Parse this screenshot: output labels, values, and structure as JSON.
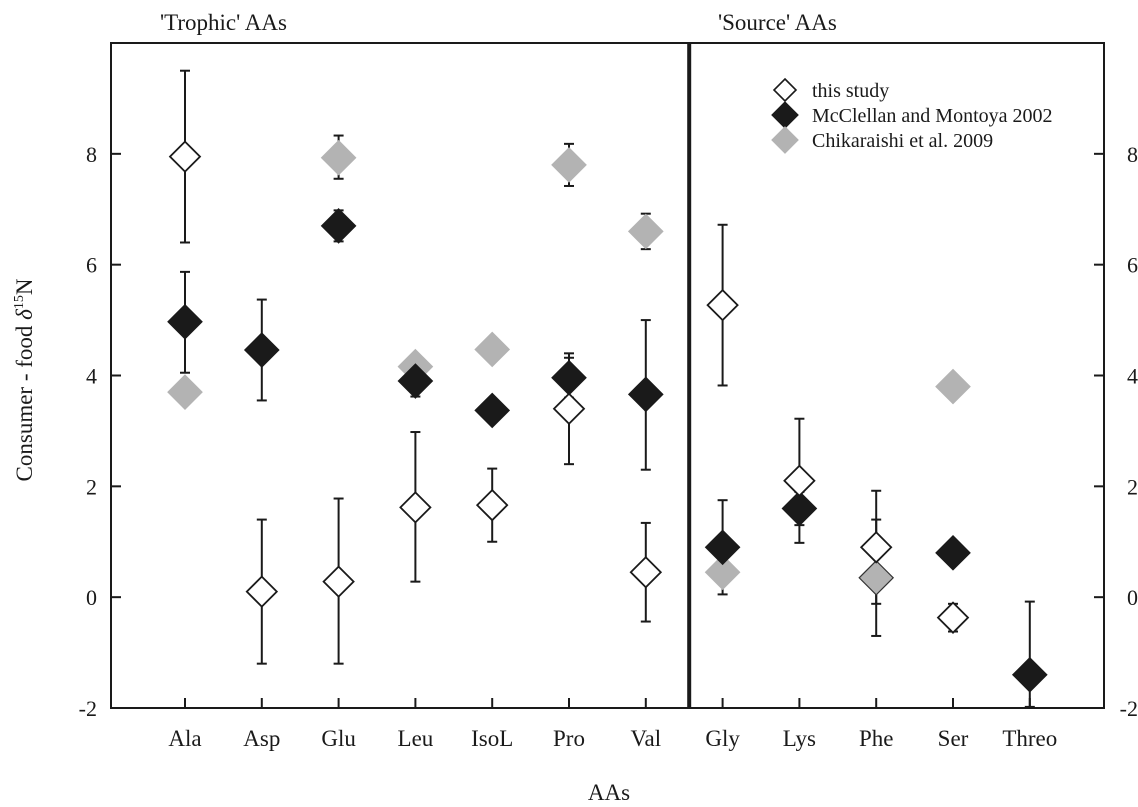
{
  "chart_data": {
    "type": "scatter",
    "xlabel": "AAs",
    "ylabel": "Consumer - food δ15N",
    "ylabel_parts": {
      "main": "Consumer - food ",
      "delta": "δ",
      "sup": "15",
      "element": "N"
    },
    "ylim": [
      -2,
      10
    ],
    "yticks": [
      -2,
      0,
      2,
      4,
      6,
      8
    ],
    "grid": false,
    "legend_position": "top-right",
    "group_titles": [
      "'Trophic' AAs",
      "'Source' AAs"
    ],
    "categories": [
      "Ala",
      "Asp",
      "Glu",
      "Leu",
      "IsoL",
      "Pro",
      "Val",
      "Gly",
      "Lys",
      "Phe",
      "Ser",
      "Threo"
    ],
    "divider_after_category": "Val",
    "series": [
      {
        "name": "this study",
        "marker": "open-diamond",
        "color": "#ffffff",
        "stroke": "#1a1a1a",
        "points": [
          {
            "x": "Ala",
            "y": 7.95,
            "yerr_low": 6.4,
            "yerr_high": 9.5
          },
          {
            "x": "Asp",
            "y": 0.1,
            "yerr_low": -1.2,
            "yerr_high": 1.4
          },
          {
            "x": "Glu",
            "y": 0.28,
            "yerr_low": -1.2,
            "yerr_high": 1.78
          },
          {
            "x": "Leu",
            "y": 1.62,
            "yerr_low": 0.28,
            "yerr_high": 2.98
          },
          {
            "x": "IsoL",
            "y": 1.66,
            "yerr_low": 1.0,
            "yerr_high": 2.32
          },
          {
            "x": "Pro",
            "y": 3.4,
            "yerr_low": 2.4,
            "yerr_high": 4.4
          },
          {
            "x": "Val",
            "y": 0.45,
            "yerr_low": -0.44,
            "yerr_high": 1.34
          },
          {
            "x": "Gly",
            "y": 5.27,
            "yerr_low": 3.82,
            "yerr_high": 6.72
          },
          {
            "x": "Lys",
            "y": 2.1,
            "yerr_low": 0.98,
            "yerr_high": 3.22
          },
          {
            "x": "Phe",
            "y": 0.9,
            "yerr_low": -0.12,
            "yerr_high": 1.92
          },
          {
            "x": "Ser",
            "y": -0.37,
            "yerr_low": -0.62,
            "yerr_high": -0.12
          },
          {
            "x": "Threo",
            "y": null
          }
        ]
      },
      {
        "name": "McClellan and Montoya 2002",
        "marker": "filled-diamond",
        "color": "#1a1a1a",
        "stroke": "#1a1a1a",
        "points": [
          {
            "x": "Ala",
            "y": 4.97,
            "yerr_low": 4.05,
            "yerr_high": 5.87
          },
          {
            "x": "Asp",
            "y": 4.46,
            "yerr_low": 3.55,
            "yerr_high": 5.37
          },
          {
            "x": "Glu",
            "y": 6.7,
            "yerr_low": 6.42,
            "yerr_high": 6.98
          },
          {
            "x": "Leu",
            "y": 3.9,
            "yerr_low": 3.62,
            "yerr_high": 4.18
          },
          {
            "x": "IsoL",
            "y": 3.37,
            "yerr_low": 3.25,
            "yerr_high": 3.49
          },
          {
            "x": "Pro",
            "y": 3.96,
            "yerr_low": 3.6,
            "yerr_high": 4.32
          },
          {
            "x": "Val",
            "y": 3.66,
            "yerr_low": 2.3,
            "yerr_high": 5.0
          },
          {
            "x": "Gly",
            "y": 0.9,
            "yerr_low": 0.05,
            "yerr_high": 1.75
          },
          {
            "x": "Lys",
            "y": 1.6,
            "yerr_low": 1.3,
            "yerr_high": 1.9
          },
          {
            "x": "Phe",
            "y": null
          },
          {
            "x": "Ser",
            "y": 0.8,
            "yerr_low": 0.7,
            "yerr_high": 0.9
          },
          {
            "x": "Threo",
            "y": -1.4,
            "yerr_low": -1.98,
            "yerr_high": -0.08
          }
        ]
      },
      {
        "name": "Chikaraishi et al. 2009",
        "marker": "filled-diamond",
        "color": "#b3b3b3",
        "stroke": "#b3b3b3",
        "points": [
          {
            "x": "Ala",
            "y": 3.7
          },
          {
            "x": "Asp",
            "y": null
          },
          {
            "x": "Glu",
            "y": 7.93,
            "yerr_low": 7.55,
            "yerr_high": 8.33
          },
          {
            "x": "Leu",
            "y": 4.16
          },
          {
            "x": "IsoL",
            "y": 4.47
          },
          {
            "x": "Pro",
            "y": 7.8,
            "yerr_low": 7.42,
            "yerr_high": 8.18
          },
          {
            "x": "Val",
            "y": 6.6,
            "yerr_low": 6.28,
            "yerr_high": 6.92
          },
          {
            "x": "Gly",
            "y": 0.45
          },
          {
            "x": "Lys",
            "y": null
          },
          {
            "x": "Phe",
            "y": 0.35,
            "yerr_low": -0.7,
            "yerr_high": 1.4,
            "stroke": "#333333"
          },
          {
            "x": "Ser",
            "y": 3.8
          },
          {
            "x": "Threo",
            "y": null
          }
        ]
      }
    ]
  }
}
